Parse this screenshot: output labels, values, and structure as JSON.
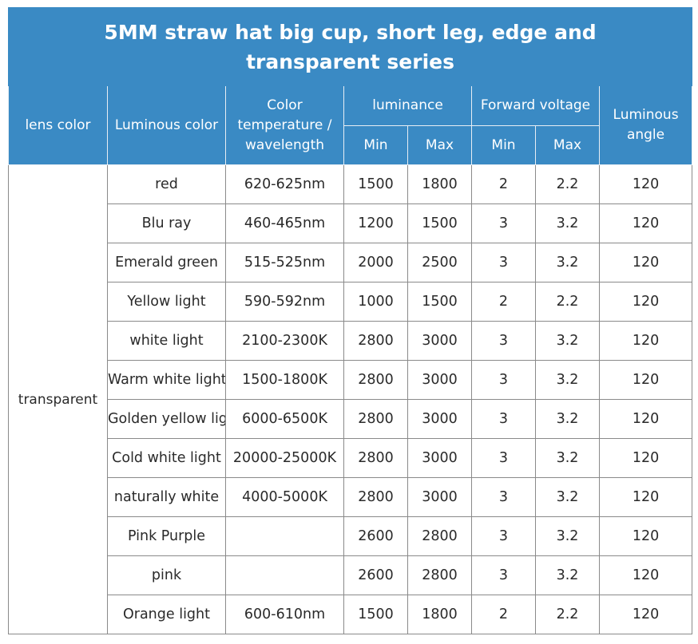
{
  "title": "5MM straw hat big cup, short leg, edge and transparent series",
  "headers": {
    "lens_color": "lens color",
    "luminous_color": "Luminous color",
    "color_temperature": "Color temperature / wavelength",
    "luminance": "luminance",
    "forward_voltage": "Forward voltage",
    "luminous_angle": "Luminous angle",
    "min": "Min",
    "max": "Max"
  },
  "lens_value": "transparent",
  "rows": [
    {
      "color": "red",
      "temp": "620-625nm",
      "lum_min": "1500",
      "lum_max": "1800",
      "v_min": "2",
      "v_max": "2.2",
      "angle": "120"
    },
    {
      "color": "Blu ray",
      "temp": "460-465nm",
      "lum_min": "1200",
      "lum_max": "1500",
      "v_min": "3",
      "v_max": "3.2",
      "angle": "120"
    },
    {
      "color": "Emerald green",
      "temp": "515-525nm",
      "lum_min": "2000",
      "lum_max": "2500",
      "v_min": "3",
      "v_max": "3.2",
      "angle": "120"
    },
    {
      "color": "Yellow light",
      "temp": "590-592nm",
      "lum_min": "1000",
      "lum_max": "1500",
      "v_min": "2",
      "v_max": "2.2",
      "angle": "120"
    },
    {
      "color": "white light",
      "temp": "2100-2300K",
      "lum_min": "2800",
      "lum_max": "3000",
      "v_min": "3",
      "v_max": "3.2",
      "angle": "120"
    },
    {
      "color": "Warm white light",
      "temp": "1500-1800K",
      "lum_min": "2800",
      "lum_max": "3000",
      "v_min": "3",
      "v_max": "3.2",
      "angle": "120"
    },
    {
      "color": "Golden yellow light",
      "temp": "6000-6500K",
      "lum_min": "2800",
      "lum_max": "3000",
      "v_min": "3",
      "v_max": "3.2",
      "angle": "120"
    },
    {
      "color": "Cold white light",
      "temp": "20000-25000K",
      "lum_min": "2800",
      "lum_max": "3000",
      "v_min": "3",
      "v_max": "3.2",
      "angle": "120"
    },
    {
      "color": "naturally white",
      "temp": "4000-5000K",
      "lum_min": "2800",
      "lum_max": "3000",
      "v_min": "3",
      "v_max": "3.2",
      "angle": "120"
    },
    {
      "color": "Pink Purple",
      "temp": "",
      "lum_min": "2600",
      "lum_max": "2800",
      "v_min": "3",
      "v_max": "3.2",
      "angle": "120"
    },
    {
      "color": "pink",
      "temp": "",
      "lum_min": "2600",
      "lum_max": "2800",
      "v_min": "3",
      "v_max": "3.2",
      "angle": "120"
    },
    {
      "color": "Orange light",
      "temp": "600-610nm",
      "lum_min": "1500",
      "lum_max": "1800",
      "v_min": "2",
      "v_max": "2.2",
      "angle": "120"
    }
  ]
}
